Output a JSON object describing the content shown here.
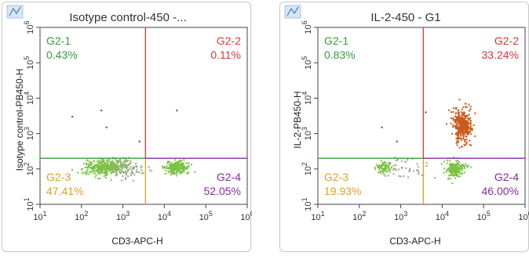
{
  "chart_data": [
    {
      "type": "scatter",
      "title": "Isotype control-450 -...",
      "xlabel": "CD3-APC-H",
      "ylabel": "Isotype control-PB450-H",
      "x_scale": "log",
      "y_scale": "log",
      "xlim": [
        10,
        1000000
      ],
      "ylim": [
        10,
        1000000
      ],
      "xticks": [
        {
          "base": "10",
          "exp": "1"
        },
        {
          "base": "10",
          "exp": "2"
        },
        {
          "base": "10",
          "exp": "3"
        },
        {
          "base": "10",
          "exp": "4"
        },
        {
          "base": "10",
          "exp": "5"
        },
        {
          "base": "10",
          "exp": "6"
        }
      ],
      "yticks": [
        {
          "base": "10",
          "exp": "1"
        },
        {
          "base": "10",
          "exp": "2"
        },
        {
          "base": "10",
          "exp": "3"
        },
        {
          "base": "10",
          "exp": "4"
        },
        {
          "base": "10",
          "exp": "5"
        },
        {
          "base": "10",
          "exp": "6"
        }
      ],
      "gate_x": 3500,
      "gate_y": 200,
      "quadrants": [
        {
          "name": "G2-1",
          "percent": "0.43%",
          "color": "#3a9a3a",
          "position": "top-left"
        },
        {
          "name": "G2-2",
          "percent": "0.11%",
          "color": "#d03a3a",
          "position": "top-right"
        },
        {
          "name": "G2-3",
          "percent": "47.41%",
          "color": "#e0a020",
          "position": "bottom-left"
        },
        {
          "name": "G2-4",
          "percent": "52.05%",
          "color": "#8a2aa0",
          "position": "bottom-right"
        }
      ],
      "clusters": [
        {
          "center": [
            400,
            110
          ],
          "spread": [
            0.55,
            0.22
          ],
          "count": 360,
          "color": "#7cc242"
        },
        {
          "center": [
            20000,
            110
          ],
          "spread": [
            0.28,
            0.18
          ],
          "count": 230,
          "color": "#7cc242"
        },
        {
          "center": [
            1200,
            100
          ],
          "spread": [
            0.5,
            0.3
          ],
          "count": 70,
          "color": "#a0a0a0"
        }
      ],
      "outliers": [
        [
          60,
          3000
        ],
        [
          300,
          4500
        ],
        [
          2500,
          600
        ],
        [
          20000,
          4500
        ],
        [
          400,
          1500
        ]
      ],
      "outlier_color": "#6a6a2a"
    },
    {
      "type": "scatter",
      "title": "IL-2-450 - G1",
      "xlabel": "CD3-APC-H",
      "ylabel": "IL-2-PB450-H",
      "x_scale": "log",
      "y_scale": "log",
      "xlim": [
        10,
        1000000
      ],
      "ylim": [
        10,
        1000000
      ],
      "xticks": [
        {
          "base": "10",
          "exp": "1"
        },
        {
          "base": "10",
          "exp": "2"
        },
        {
          "base": "10",
          "exp": "3"
        },
        {
          "base": "10",
          "exp": "4"
        },
        {
          "base": "10",
          "exp": "5"
        },
        {
          "base": "10",
          "exp": "6"
        }
      ],
      "yticks": [
        {
          "base": "10",
          "exp": "1"
        },
        {
          "base": "10",
          "exp": "2"
        },
        {
          "base": "10",
          "exp": "3"
        },
        {
          "base": "10",
          "exp": "4"
        },
        {
          "base": "10",
          "exp": "5"
        },
        {
          "base": "10",
          "exp": "6"
        }
      ],
      "gate_x": 3500,
      "gate_y": 200,
      "quadrants": [
        {
          "name": "G2-1",
          "percent": "0.83%",
          "color": "#3a9a3a",
          "position": "top-left"
        },
        {
          "name": "G2-2",
          "percent": "33.24%",
          "color": "#d03a3a",
          "position": "top-right"
        },
        {
          "name": "G2-3",
          "percent": "19.93%",
          "color": "#e0a020",
          "position": "bottom-left"
        },
        {
          "name": "G2-4",
          "percent": "46.00%",
          "color": "#8a2aa0",
          "position": "bottom-right"
        }
      ],
      "clusters": [
        {
          "center": [
            30000,
            1800
          ],
          "spread": [
            0.22,
            0.5
          ],
          "count": 380,
          "color": "#c85a1a"
        },
        {
          "center": [
            20000,
            100
          ],
          "spread": [
            0.25,
            0.22
          ],
          "count": 200,
          "color": "#7cc242"
        },
        {
          "center": [
            400,
            110
          ],
          "spread": [
            0.2,
            0.18
          ],
          "count": 80,
          "color": "#7cc242"
        },
        {
          "center": [
            1500,
            100
          ],
          "spread": [
            0.5,
            0.3
          ],
          "count": 40,
          "color": "#a0a0a0"
        }
      ],
      "outliers": [
        [
          350,
          1500
        ],
        [
          4000,
          4000
        ],
        [
          800,
          600
        ]
      ],
      "outlier_color": "#6a6a2a"
    }
  ]
}
